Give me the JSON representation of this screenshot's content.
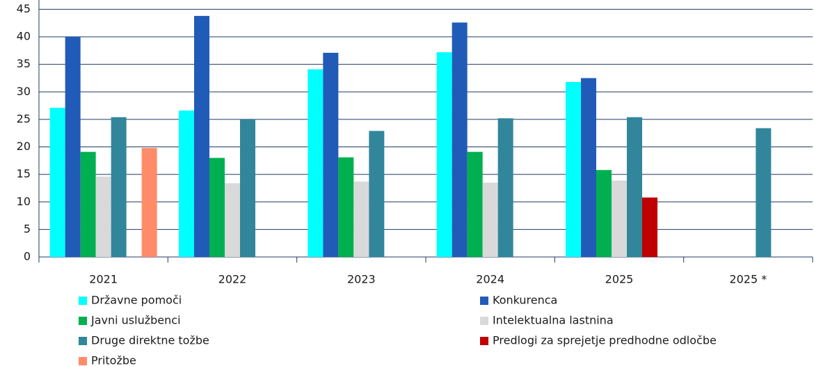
{
  "chart_data": {
    "type": "bar",
    "categories": [
      "2021",
      "2022",
      "2023",
      "2024",
      "2025",
      "2025 *"
    ],
    "series": [
      {
        "name": "Državne pomoči",
        "color": "#00ffff",
        "values": [
          27.1,
          26.6,
          34.1,
          37.2,
          31.8,
          null
        ]
      },
      {
        "name": "Konkurenca",
        "color": "#215bb8",
        "values": [
          40,
          43.8,
          37.1,
          42.6,
          32.5,
          null
        ]
      },
      {
        "name": "Javni uslužbenci",
        "color": "#00b050",
        "values": [
          19.1,
          18.0,
          18.1,
          19.1,
          15.8,
          null
        ]
      },
      {
        "name": "Intelektualna lastnina",
        "color": "#d9d9d9",
        "values": [
          14.6,
          13.4,
          13.7,
          13.5,
          13.9,
          null
        ]
      },
      {
        "name": "Druge direktne tožbe",
        "color": "#31869b",
        "values": [
          25.4,
          25.0,
          22.9,
          25.2,
          25.4,
          23.4
        ]
      },
      {
        "name": "Predlogi za sprejetje predhodne odločbe",
        "color": "#c00000",
        "values": [
          null,
          null,
          null,
          null,
          10.8,
          null
        ]
      },
      {
        "name": "Pritožbe",
        "color": "#ff8c69",
        "values": [
          19.8,
          null,
          null,
          null,
          null,
          null
        ]
      }
    ],
    "ylim": [
      0,
      45
    ],
    "yticks": [
      0,
      5,
      10,
      15,
      20,
      25,
      30,
      35,
      40,
      45
    ],
    "grid": true
  }
}
